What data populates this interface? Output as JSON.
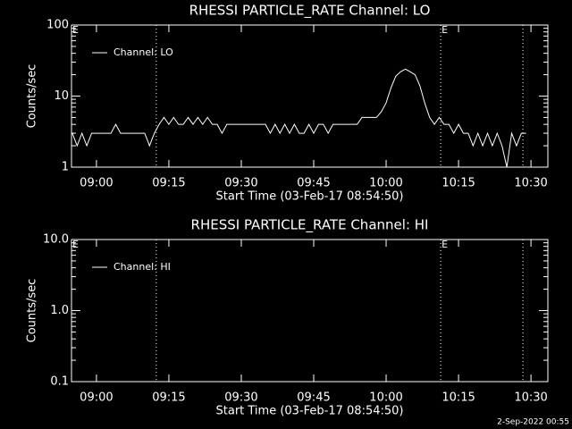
{
  "chart_data": [
    {
      "type": "line",
      "title": "RHESSI PARTICLE_RATE Channel: LO",
      "ylabel": "Counts/sec",
      "xlabel": "Start Time (03-Feb-17 08:54:50)",
      "log_y": true,
      "color": "#ffffff",
      "legend": "upper left",
      "xlim": [
        "08:54:50",
        "10:33:30"
      ],
      "xticks": [
        "09:00",
        "09:15",
        "09:30",
        "09:45",
        "10:00",
        "10:15",
        "10:30"
      ],
      "ylim": [
        1,
        100
      ],
      "yticks": [
        1,
        10,
        100
      ],
      "vlines": [
        "09:12:24",
        "10:11:18",
        "10:28:20"
      ],
      "annotations": [
        {
          "x": "08:54:50",
          "text": "E"
        },
        {
          "x": "10:11:18",
          "text": "E"
        }
      ],
      "series": [
        {
          "name": "Channel: LO",
          "color": "#ffffff",
          "x": [
            "08:55",
            "08:56",
            "08:57",
            "08:58",
            "08:59",
            "09:00",
            "09:01",
            "09:02",
            "09:03",
            "09:04",
            "09:05",
            "09:06",
            "09:07",
            "09:08",
            "09:09",
            "09:10",
            "09:11",
            "09:12",
            "09:13",
            "09:14",
            "09:15",
            "09:16",
            "09:17",
            "09:18",
            "09:19",
            "09:20",
            "09:21",
            "09:22",
            "09:23",
            "09:24",
            "09:25",
            "09:26",
            "09:27",
            "09:28",
            "09:29",
            "09:30",
            "09:31",
            "09:32",
            "09:33",
            "09:34",
            "09:35",
            "09:36",
            "09:37",
            "09:38",
            "09:39",
            "09:40",
            "09:41",
            "09:42",
            "09:43",
            "09:44",
            "09:45",
            "09:46",
            "09:47",
            "09:48",
            "09:49",
            "09:50",
            "09:51",
            "09:52",
            "09:53",
            "09:54",
            "09:55",
            "09:56",
            "09:57",
            "09:58",
            "09:59",
            "10:00",
            "10:01",
            "10:02",
            "10:03",
            "10:04",
            "10:05",
            "10:06",
            "10:07",
            "10:08",
            "10:09",
            "10:10",
            "10:11",
            "10:12",
            "10:13",
            "10:14",
            "10:15",
            "10:16",
            "10:17",
            "10:18",
            "10:19",
            "10:20",
            "10:21",
            "10:22",
            "10:23",
            "10:24",
            "10:25",
            "10:26",
            "10:27",
            "10:28",
            "10:29"
          ],
          "values": [
            3,
            2,
            3,
            2,
            3,
            3,
            3,
            3,
            3,
            4,
            3,
            3,
            3,
            3,
            3,
            3,
            2,
            3,
            4,
            5,
            4,
            5,
            4,
            4,
            5,
            4,
            5,
            4,
            5,
            4,
            4,
            3,
            4,
            4,
            4,
            4,
            4,
            4,
            4,
            4,
            4,
            3,
            4,
            3,
            4,
            3,
            4,
            3,
            3,
            4,
            3,
            4,
            4,
            3,
            4,
            4,
            4,
            4,
            4,
            4,
            5,
            5,
            5,
            5,
            6,
            8,
            13,
            19,
            22,
            24,
            22,
            20,
            14,
            8,
            5,
            4,
            5,
            4,
            4,
            3,
            4,
            3,
            3,
            2,
            3,
            2,
            3,
            2,
            3,
            2,
            1,
            3,
            2,
            3,
            3
          ]
        }
      ]
    },
    {
      "type": "line",
      "title": "RHESSI PARTICLE_RATE Channel: HI",
      "ylabel": "Counts/sec",
      "xlabel": "Start Time (03-Feb-17 08:54:50)",
      "log_y": true,
      "color": "#ffffff",
      "legend": "upper left",
      "xlim": [
        "08:54:50",
        "10:33:30"
      ],
      "xticks": [
        "09:00",
        "09:15",
        "09:30",
        "09:45",
        "10:00",
        "10:15",
        "10:30"
      ],
      "ylim": [
        0.1,
        10
      ],
      "yticks": [
        0.1,
        {
          "value": 1,
          "label": "1.0"
        },
        {
          "value": 10,
          "label": "10.0"
        }
      ],
      "vlines": [
        "09:12:24",
        "10:11:18",
        "10:28:20"
      ],
      "annotations": [
        {
          "x": "08:54:50",
          "text": "E"
        },
        {
          "x": "10:11:18",
          "text": "E"
        }
      ],
      "series": [
        {
          "name": "Channel: HI",
          "color": "#ffffff",
          "x": [],
          "values": []
        }
      ]
    }
  ],
  "footer": "2-Sep-2022 00:55"
}
